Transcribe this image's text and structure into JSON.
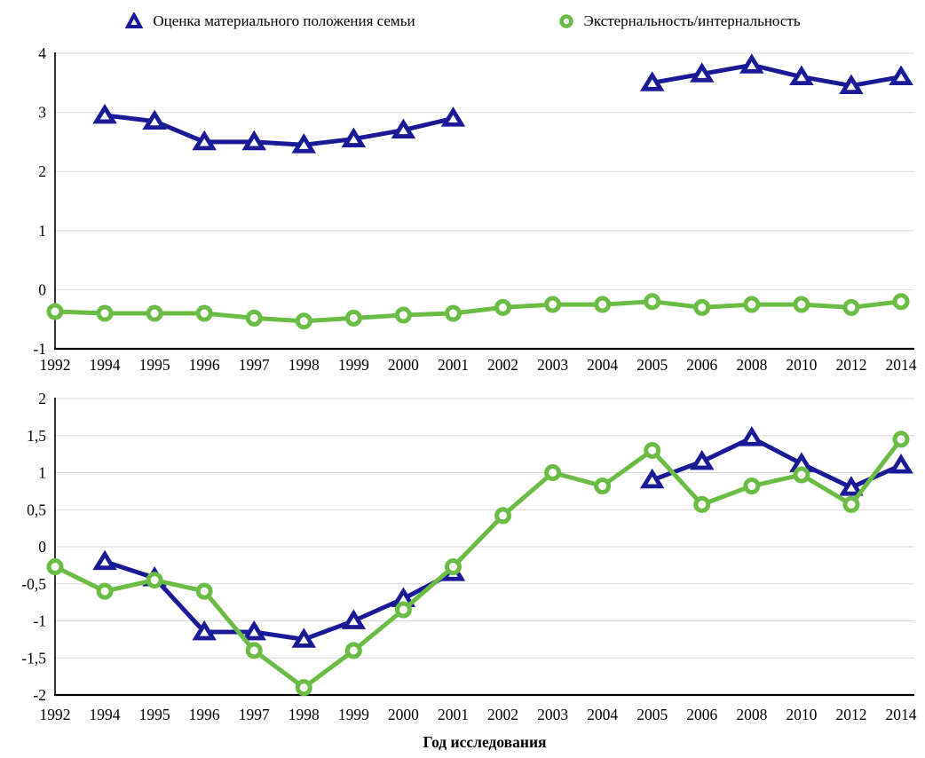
{
  "colors": {
    "series_material": "#1A1A96",
    "series_externality": "#6ABC45",
    "grid": "#D8D8D8",
    "axis": "#000000",
    "background": "#FFFFFF"
  },
  "legend": {
    "items": [
      {
        "id": "material",
        "label": "Оценка материального положения семьи",
        "marker": "triangle",
        "color": "#1A1A96"
      },
      {
        "id": "externality",
        "label": "Экстернальность/интернальность",
        "marker": "circle",
        "color": "#6ABC45"
      }
    ]
  },
  "x_axis_title": "Год исследования",
  "categories": [
    "1992",
    "1994",
    "1995",
    "1996",
    "1997",
    "1998",
    "1999",
    "2000",
    "2001",
    "2002",
    "2003",
    "2004",
    "2005",
    "2006",
    "2008",
    "2010",
    "2012",
    "2014"
  ],
  "chart_data": [
    {
      "type": "line",
      "position": "top",
      "title": "",
      "xlabel": "",
      "ylabel": "",
      "grid": true,
      "legend_position": "top",
      "categories": [
        "1992",
        "1994",
        "1995",
        "1996",
        "1997",
        "1998",
        "1999",
        "2000",
        "2001",
        "2002",
        "2003",
        "2004",
        "2005",
        "2006",
        "2008",
        "2010",
        "2012",
        "2014"
      ],
      "ylim": [
        -1,
        4
      ],
      "yticks": [
        {
          "v": 4,
          "label": "4"
        },
        {
          "v": 3,
          "label": "3"
        },
        {
          "v": 2,
          "label": "2"
        },
        {
          "v": 1,
          "label": "1"
        },
        {
          "v": 0,
          "label": "0"
        },
        {
          "v": -1,
          "label": "-1"
        }
      ],
      "series": [
        {
          "name": "Оценка материального положения семьи",
          "marker": "triangle",
          "color": "#1A1A96",
          "values": [
            null,
            2.95,
            2.85,
            2.5,
            2.5,
            2.45,
            2.55,
            2.7,
            2.9,
            null,
            null,
            null,
            3.5,
            3.65,
            3.8,
            3.6,
            3.45,
            3.6
          ]
        },
        {
          "name": "Экстернальность/интернальность",
          "marker": "circle",
          "color": "#6ABC45",
          "values": [
            -0.37,
            -0.4,
            -0.4,
            -0.4,
            -0.48,
            -0.53,
            -0.48,
            -0.43,
            -0.4,
            -0.3,
            -0.25,
            -0.25,
            -0.2,
            -0.3,
            -0.25,
            -0.25,
            -0.3,
            -0.2
          ]
        }
      ]
    },
    {
      "type": "line",
      "position": "bottom",
      "title": "",
      "xlabel": "Год исследования",
      "ylabel": "",
      "grid": true,
      "categories": [
        "1992",
        "1994",
        "1995",
        "1996",
        "1997",
        "1998",
        "1999",
        "2000",
        "2001",
        "2002",
        "2003",
        "2004",
        "2005",
        "2006",
        "2008",
        "2010",
        "2012",
        "2014"
      ],
      "ylim": [
        -2,
        2
      ],
      "yticks": [
        {
          "v": 2,
          "label": "2"
        },
        {
          "v": 1.5,
          "label": "1,5"
        },
        {
          "v": 1,
          "label": "1"
        },
        {
          "v": 0.5,
          "label": "0,5"
        },
        {
          "v": 0,
          "label": "0"
        },
        {
          "v": -0.5,
          "label": "-0,5"
        },
        {
          "v": -1,
          "label": "-1"
        },
        {
          "v": -1.5,
          "label": "-1,5"
        },
        {
          "v": -2,
          "label": "-2"
        }
      ],
      "series": [
        {
          "name": "Оценка материального положения семьи",
          "marker": "triangle",
          "color": "#1A1A96",
          "values": [
            null,
            -0.2,
            -0.42,
            -1.15,
            -1.15,
            -1.25,
            -1.0,
            -0.7,
            -0.35,
            null,
            null,
            null,
            0.9,
            1.15,
            1.47,
            1.12,
            0.8,
            1.1
          ]
        },
        {
          "name": "Экстернальность/интернальность",
          "marker": "circle",
          "color": "#6ABC45",
          "values": [
            -0.27,
            -0.6,
            -0.45,
            -0.6,
            -1.4,
            -1.9,
            -1.4,
            -0.85,
            -0.27,
            0.42,
            1.0,
            0.82,
            1.3,
            0.57,
            0.82,
            0.97,
            0.57,
            1.45
          ]
        }
      ]
    }
  ]
}
